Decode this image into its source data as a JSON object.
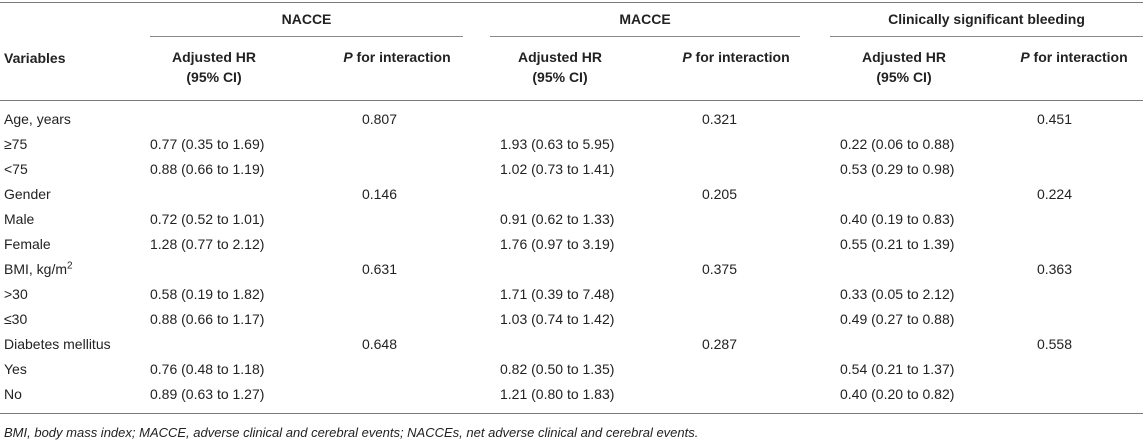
{
  "groups": [
    {
      "label": "NACCE"
    },
    {
      "label": "MACCE"
    },
    {
      "label": "Clinically significant bleeding"
    }
  ],
  "header": {
    "variables_label": "Variables",
    "hr_line1": "Adjusted HR",
    "hr_line2": "(95% CI)",
    "p_prefix": "P",
    "p_suffix": " for interaction"
  },
  "rows": [
    {
      "label": "Age, years",
      "sup": "",
      "hr": [
        "",
        "",
        ""
      ],
      "p": [
        "0.807",
        "0.321",
        "0.451"
      ]
    },
    {
      "label": "≥75",
      "sup": "",
      "hr": [
        "0.77 (0.35 to 1.69)",
        "1.93 (0.63 to 5.95)",
        "0.22 (0.06 to 0.88)"
      ],
      "p": [
        "",
        "",
        ""
      ]
    },
    {
      "label": "<75",
      "sup": "",
      "hr": [
        "0.88 (0.66 to 1.19)",
        "1.02 (0.73 to 1.41)",
        "0.53 (0.29 to 0.98)"
      ],
      "p": [
        "",
        "",
        ""
      ]
    },
    {
      "label": "Gender",
      "sup": "",
      "hr": [
        "",
        "",
        ""
      ],
      "p": [
        "0.146",
        "0.205",
        "0.224"
      ]
    },
    {
      "label": "Male",
      "sup": "",
      "hr": [
        "0.72 (0.52 to 1.01)",
        "0.91 (0.62 to 1.33)",
        "0.40 (0.19 to 0.83)"
      ],
      "p": [
        "",
        "",
        ""
      ]
    },
    {
      "label": "Female",
      "sup": "",
      "hr": [
        "1.28 (0.77 to 2.12)",
        "1.76 (0.97 to 3.19)",
        "0.55 (0.21 to 1.39)"
      ],
      "p": [
        "",
        "",
        ""
      ]
    },
    {
      "label": "BMI, kg/m",
      "sup": "2",
      "hr": [
        "",
        "",
        ""
      ],
      "p": [
        "0.631",
        "0.375",
        "0.363"
      ]
    },
    {
      "label": ">30",
      "sup": "",
      "hr": [
        "0.58 (0.19 to 1.82)",
        "1.71 (0.39 to 7.48)",
        "0.33 (0.05 to 2.12)"
      ],
      "p": [
        "",
        "",
        ""
      ]
    },
    {
      "label": "≤30",
      "sup": "",
      "hr": [
        "0.88 (0.66 to 1.17)",
        "1.03 (0.74 to 1.42)",
        "0.49 (0.27 to 0.88)"
      ],
      "p": [
        "",
        "",
        ""
      ]
    },
    {
      "label": "Diabetes mellitus",
      "sup": "",
      "hr": [
        "",
        "",
        ""
      ],
      "p": [
        "0.648",
        "0.287",
        "0.558"
      ]
    },
    {
      "label": "Yes",
      "sup": "",
      "hr": [
        "0.76 (0.48 to 1.18)",
        "0.82 (0.50 to 1.35)",
        "0.54 (0.21 to 1.37)"
      ],
      "p": [
        "",
        "",
        ""
      ]
    },
    {
      "label": "No",
      "sup": "",
      "hr": [
        "0.89 (0.63 to 1.27)",
        "1.21 (0.80 to 1.83)",
        "0.40 (0.20 to 0.82)"
      ],
      "p": [
        "",
        "",
        ""
      ]
    }
  ],
  "footnote": "BMI, body mass index; MACCE, adverse clinical and cerebral events; NACCEs, net adverse clinical and cerebral events."
}
